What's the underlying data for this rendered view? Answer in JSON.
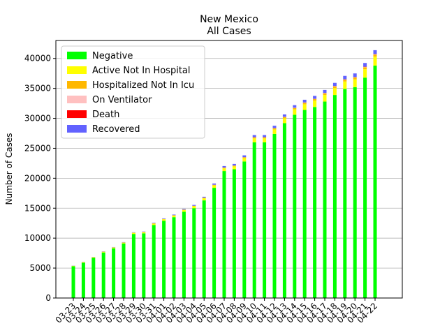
{
  "chart_data": {
    "type": "bar",
    "stacked": true,
    "title": "New Mexico",
    "subtitle": "All Cases",
    "xlabel": "",
    "ylabel": "Number of Cases",
    "ylim": [
      0,
      43000
    ],
    "yticks": [
      0,
      5000,
      10000,
      15000,
      20000,
      25000,
      30000,
      35000,
      40000
    ],
    "grid": "horizontal",
    "legend_position": "top-left",
    "categories": [
      "03-23",
      "03-24",
      "03-25",
      "03-26",
      "03-27",
      "03-28",
      "03-29",
      "03-30",
      "03-31",
      "04-01",
      "04-02",
      "04-03",
      "04-04",
      "04-05",
      "04-06",
      "04-07",
      "04-08",
      "04-09",
      "04-10",
      "04-11",
      "04-12",
      "04-13",
      "04-14",
      "04-15",
      "04-16",
      "04-17",
      "04-18",
      "04-19",
      "04-20",
      "04-21",
      "04-22"
    ],
    "series": [
      {
        "name": "Negative",
        "color": "#00ff00",
        "values": [
          5300,
          5900,
          6700,
          7600,
          8300,
          9100,
          10700,
          10800,
          12200,
          12900,
          13500,
          14400,
          15000,
          16300,
          18400,
          21200,
          21500,
          22800,
          26000,
          26000,
          27400,
          29200,
          30600,
          31400,
          31900,
          32800,
          33900,
          34900,
          35200,
          36800,
          38800
        ]
      },
      {
        "name": "Active Not In Hospital",
        "color": "#ffff00",
        "values": [
          80,
          90,
          110,
          130,
          140,
          150,
          180,
          190,
          220,
          240,
          260,
          280,
          320,
          350,
          400,
          450,
          480,
          550,
          650,
          650,
          750,
          800,
          900,
          950,
          1050,
          1100,
          1150,
          1250,
          1300,
          1400,
          1500
        ]
      },
      {
        "name": "Hospitalized Not In Icu",
        "color": "#ffb800",
        "values": [
          10,
          10,
          15,
          20,
          25,
          30,
          35,
          40,
          45,
          50,
          55,
          60,
          70,
          80,
          90,
          100,
          110,
          130,
          160,
          160,
          180,
          200,
          220,
          240,
          260,
          270,
          280,
          300,
          320,
          340,
          350
        ]
      },
      {
        "name": "On Ventilator",
        "color": "#ffc0c0",
        "values": [
          2,
          3,
          4,
          5,
          6,
          7,
          8,
          9,
          10,
          11,
          12,
          14,
          16,
          18,
          20,
          22,
          24,
          26,
          28,
          30,
          32,
          34,
          36,
          38,
          40,
          42,
          44,
          46,
          48,
          50,
          52
        ]
      },
      {
        "name": "Death",
        "color": "#ff0000",
        "values": [
          1,
          1,
          1,
          1,
          2,
          2,
          3,
          4,
          5,
          5,
          6,
          7,
          9,
          11,
          12,
          13,
          14,
          15,
          18,
          19,
          20,
          22,
          24,
          26,
          27,
          28,
          30,
          32,
          33,
          35,
          37
        ]
      },
      {
        "name": "Recovered",
        "color": "#6262ff",
        "values": [
          20,
          25,
          30,
          35,
          40,
          45,
          50,
          60,
          80,
          90,
          100,
          110,
          130,
          150,
          200,
          250,
          260,
          300,
          350,
          350,
          380,
          400,
          420,
          450,
          470,
          500,
          520,
          560,
          600,
          620,
          640
        ]
      }
    ]
  }
}
